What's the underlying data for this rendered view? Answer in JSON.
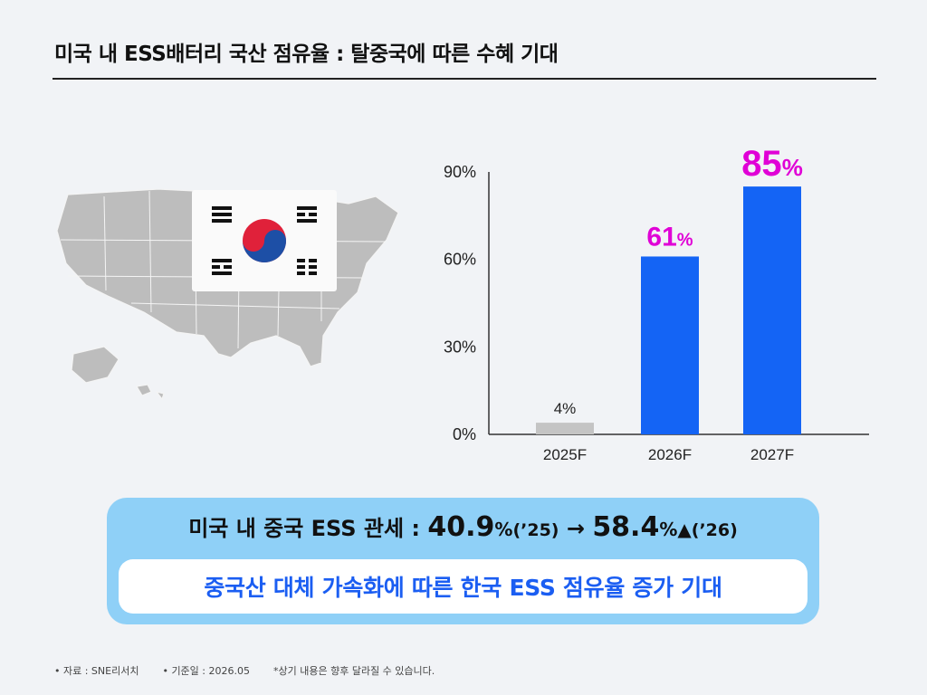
{
  "title": "미국 내 ESS배터리 국산 점유율 : 탈중국에 따른 수혜 기대",
  "chart_data": {
    "type": "bar",
    "categories": [
      "2025F",
      "2026F",
      "2027F"
    ],
    "values": [
      4,
      61,
      85
    ],
    "data_labels": [
      "4%",
      "61%",
      "85%"
    ],
    "ylim": [
      0,
      90
    ],
    "yticks": [
      "0%",
      "30%",
      "60%",
      "90%"
    ],
    "ytick_values": [
      0,
      30,
      60,
      90
    ],
    "bar_colors": [
      "#c4c4c4",
      "#1464f5",
      "#1464f5"
    ],
    "label_colors": [
      "#222222",
      "#e000d6",
      "#e000d6"
    ],
    "grid": false
  },
  "colors": {
    "panel_bg": "#8fd0f7",
    "highlight_blue": "#1b5ef2",
    "highlight_magenta": "#e000d6"
  },
  "summary": {
    "part1": "미국 내 중국 ESS 관세 : ",
    "value_2025": "40.9",
    "unit_2025": "%",
    "year_2025": "(’25)",
    "arrow": "→",
    "value_2026": "58.4",
    "unit_2026": "%",
    "up_icon": "▲",
    "year_2026": "(’26)",
    "conclusion": "중국산 대체 가속화에 따른 한국 ESS 점유율 증가 기대"
  },
  "footer": {
    "source": "• 자료 : SNE리서치",
    "base_date": "• 기준일 : 2026.05",
    "note": "*상기 내용은 향후 달라질 수 있습니다."
  },
  "icons": [
    "us-map-icon",
    "korean-flag-icon"
  ]
}
